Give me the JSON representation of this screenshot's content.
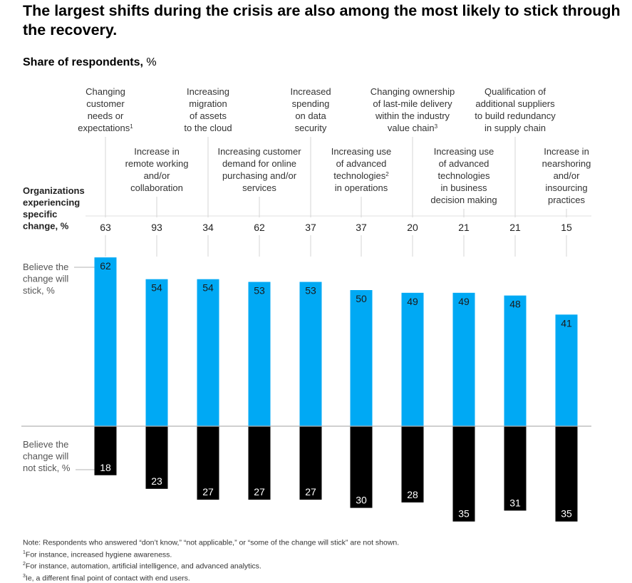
{
  "title": "The largest shifts during the crisis are also among the most likely to stick through the recovery.",
  "subtitle_bold": "Share of respondents,",
  "subtitle_unit": "%",
  "row_labels": {
    "organizations": [
      "Organizations",
      "experiencing",
      "specific",
      "change, %"
    ],
    "stick": [
      "Believe the",
      "change will",
      "stick, %"
    ],
    "not_stick": [
      "Believe the",
      "change will",
      "not stick, %"
    ]
  },
  "colors": {
    "stick": "#00a9f4",
    "not_stick": "#000000",
    "axis": "#b3b3b3"
  },
  "chart_data": {
    "type": "bar",
    "categories": [
      {
        "lines": [
          "Changing",
          "customer",
          "needs or",
          "expectations"
        ],
        "sup": "1",
        "tier": "top"
      },
      {
        "lines": [
          "Increase in",
          "remote working",
          "and/or",
          "collaboration"
        ],
        "sup": "",
        "tier": "bottom"
      },
      {
        "lines": [
          "Increasing",
          "migration",
          "of assets",
          "to the cloud"
        ],
        "sup": "",
        "tier": "top"
      },
      {
        "lines": [
          "Increasing customer",
          "demand for online",
          "purchasing and/or",
          "services"
        ],
        "sup": "",
        "tier": "bottom"
      },
      {
        "lines": [
          "Increased",
          "spending",
          "on data",
          "security"
        ],
        "sup": "",
        "tier": "top"
      },
      {
        "lines": [
          "Increasing use",
          "of advanced",
          "technologies",
          "in operations"
        ],
        "sup": "2",
        "sup_line": 2,
        "tier": "bottom"
      },
      {
        "lines": [
          "Changing ownership",
          "of last-mile delivery",
          "within the industry",
          "value chain"
        ],
        "sup": "3",
        "tier": "top"
      },
      {
        "lines": [
          "Increasing use",
          "of advanced",
          "technologies",
          "in business",
          "decision making"
        ],
        "sup": "",
        "tier": "bottom"
      },
      {
        "lines": [
          "Qualification of",
          "additional suppliers",
          "to build redundancy",
          "in supply chain"
        ],
        "sup": "",
        "tier": "top"
      },
      {
        "lines": [
          "Increase in",
          "nearshoring",
          "and/or",
          "insourcing",
          "practices"
        ],
        "sup": "",
        "tier": "bottom"
      }
    ],
    "organizations_experiencing": [
      63,
      93,
      34,
      62,
      37,
      37,
      20,
      21,
      21,
      15
    ],
    "series": [
      {
        "name": "Believe the change will stick, %",
        "values": [
          62,
          54,
          54,
          53,
          53,
          50,
          49,
          49,
          48,
          41
        ]
      },
      {
        "name": "Believe the change will not stick, %",
        "values": [
          18,
          23,
          27,
          27,
          27,
          30,
          28,
          35,
          31,
          35
        ]
      }
    ],
    "baseline": 0
  },
  "notes": [
    {
      "sup": "",
      "text": "Note: Respondents who answered “don’t know,” “not applicable,” or “some of the change will stick” are not shown."
    },
    {
      "sup": "1",
      "text": "For instance, increased hygiene awareness."
    },
    {
      "sup": "2",
      "text": "For instance, automation, artificial intelligence, and advanced analytics."
    },
    {
      "sup": "3",
      "text": "Ie, a different final point of contact with end users."
    }
  ]
}
